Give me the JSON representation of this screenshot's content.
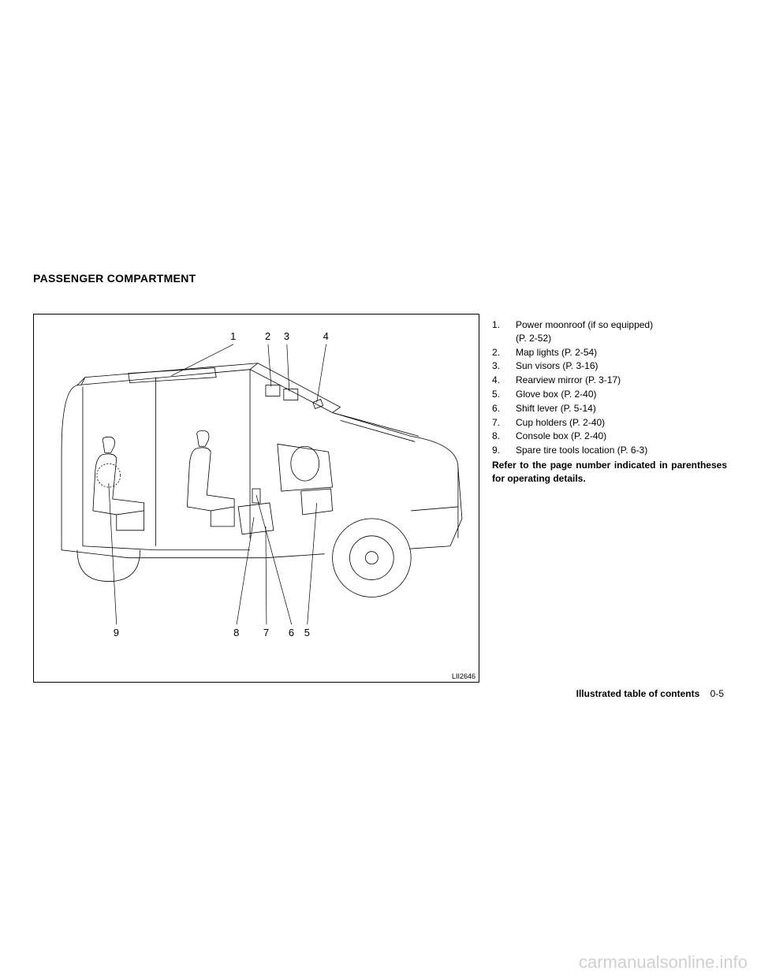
{
  "section_title": "PASSENGER COMPARTMENT",
  "diagram": {
    "code": "LII2646",
    "top_labels": [
      "1",
      "2",
      "3",
      "4"
    ],
    "bottom_labels": [
      "9",
      "8",
      "7",
      "6",
      "5"
    ],
    "line_color": "#000000",
    "background": "#ffffff"
  },
  "list_items": [
    {
      "num": "1.",
      "text": "Power moonroof (if so equipped)\n(P. 2-52)"
    },
    {
      "num": "2.",
      "text": "Map lights (P. 2-54)"
    },
    {
      "num": "3.",
      "text": "Sun visors (P. 3-16)"
    },
    {
      "num": "4.",
      "text": "Rearview mirror (P. 3-17)"
    },
    {
      "num": "5.",
      "text": "Glove box (P. 2-40)"
    },
    {
      "num": "6.",
      "text": "Shift lever (P. 5-14)"
    },
    {
      "num": "7.",
      "text": "Cup holders (P. 2-40)"
    },
    {
      "num": "8.",
      "text": "Console box (P. 2-40)"
    },
    {
      "num": "9.",
      "text": "Spare tire tools location (P. 6-3)"
    }
  ],
  "note": "Refer to the page number indicated in parentheses for operating details.",
  "footer": {
    "title": "Illustrated table of contents",
    "page": "0-5"
  },
  "watermark": "carmanualsonline.info"
}
